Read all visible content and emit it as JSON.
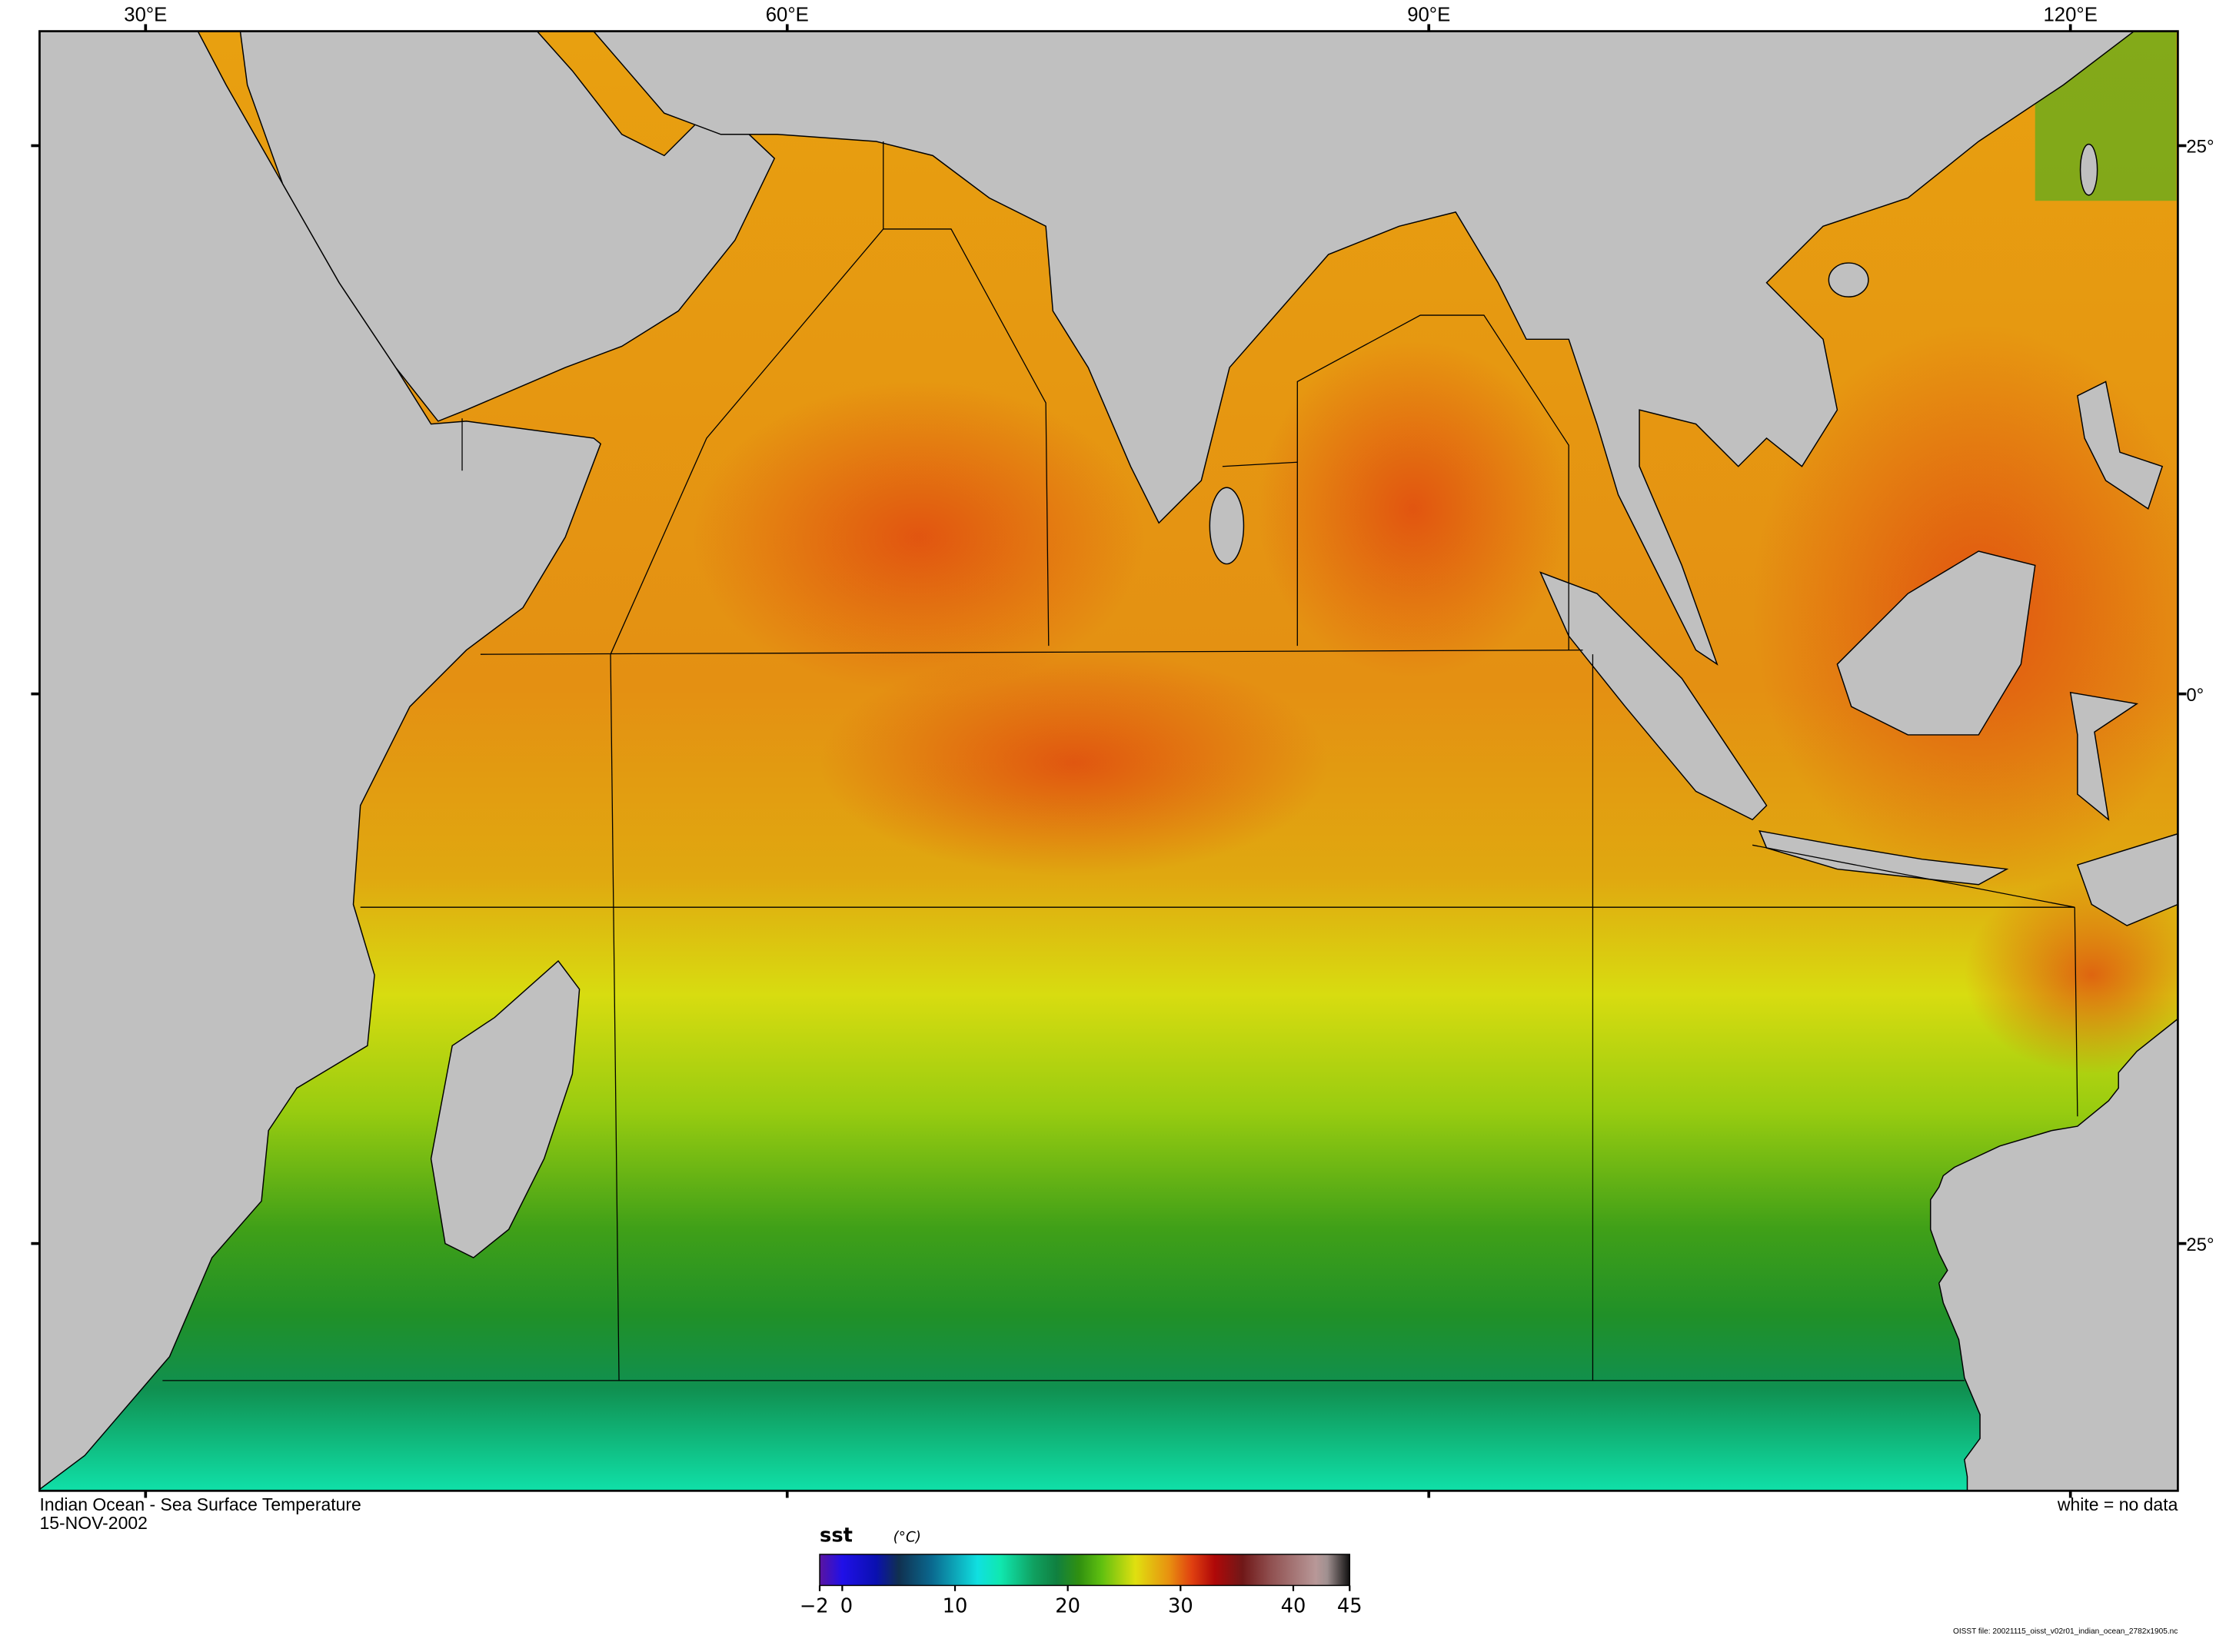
{
  "map": {
    "title": "Indian Ocean - Sea Surface Temperature",
    "date": "15-NOV-2002",
    "no_data_note": "white = no data",
    "file_label": "OISST file: 20021115_oisst_v02r01_indian_ocean_2782x1905.nc",
    "lon_labels": [
      "30°E",
      "60°E",
      "90°E",
      "120°E"
    ],
    "lat_labels": [
      "25°",
      "0°",
      "25°"
    ],
    "land_color": "#c0c0c0"
  },
  "colorbar": {
    "variable": "sst",
    "units": "(°C)",
    "range": [
      -2,
      45
    ],
    "tick_labels": [
      "−2",
      "0",
      "10",
      "20",
      "30",
      "40",
      "45"
    ],
    "tick_values": [
      -2,
      0,
      10,
      20,
      30,
      40,
      45
    ],
    "stops": [
      [
        -2,
        "#5a14a0"
      ],
      [
        0,
        "#2010e8"
      ],
      [
        3,
        "#0a10b0"
      ],
      [
        5,
        "#103050"
      ],
      [
        8,
        "#0a6a90"
      ],
      [
        12,
        "#10e0e0"
      ],
      [
        14,
        "#10e8b0"
      ],
      [
        17,
        "#10a060"
      ],
      [
        19,
        "#108040"
      ],
      [
        21,
        "#309010"
      ],
      [
        23,
        "#60c010"
      ],
      [
        26,
        "#e0e010"
      ],
      [
        29,
        "#e89010"
      ],
      [
        31,
        "#e04010"
      ],
      [
        33,
        "#b00808"
      ],
      [
        35.5,
        "#701818"
      ],
      [
        38,
        "#905050"
      ],
      [
        42,
        "#b89898"
      ],
      [
        43,
        "#a09090"
      ],
      [
        45,
        "#101010"
      ]
    ]
  }
}
